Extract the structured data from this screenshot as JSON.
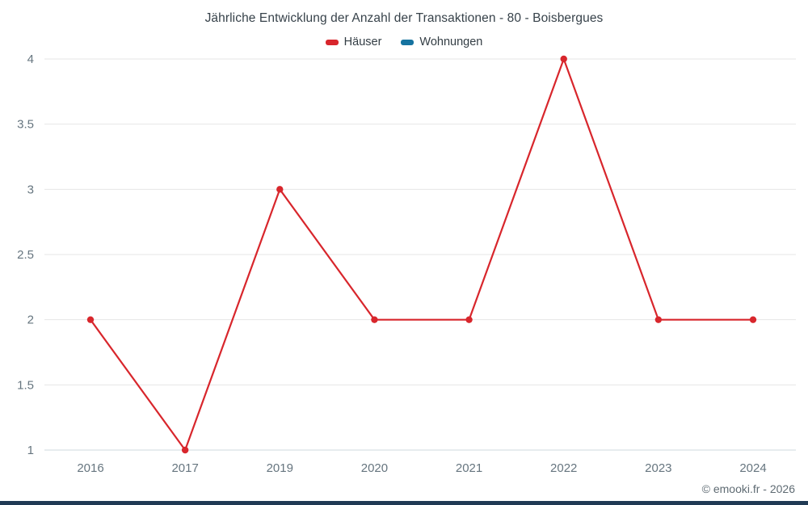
{
  "footer": {
    "copyright": "© emooki.fr - 2026"
  },
  "chart_data": {
    "type": "line",
    "title": "Jährliche Entwicklung der Anzahl der Transaktionen - 80 - Boisbergues",
    "categories": [
      "2016",
      "2017",
      "2019",
      "2020",
      "2021",
      "2022",
      "2023",
      "2024"
    ],
    "series": [
      {
        "name": "Häuser",
        "color": "#d8262c",
        "values": [
          2,
          1,
          3,
          2,
          2,
          4,
          2,
          2
        ]
      },
      {
        "name": "Wohnungen",
        "color": "#1673a0",
        "values": []
      }
    ],
    "xlabel": "",
    "ylabel": "",
    "ylim": [
      1,
      4
    ],
    "yticks": [
      1,
      1.5,
      2,
      2.5,
      3,
      3.5,
      4
    ],
    "grid": true,
    "grid_color": "#e6e6e6",
    "axis_color": "#cfd8dc",
    "legend_position": "top",
    "marker": "circle"
  }
}
